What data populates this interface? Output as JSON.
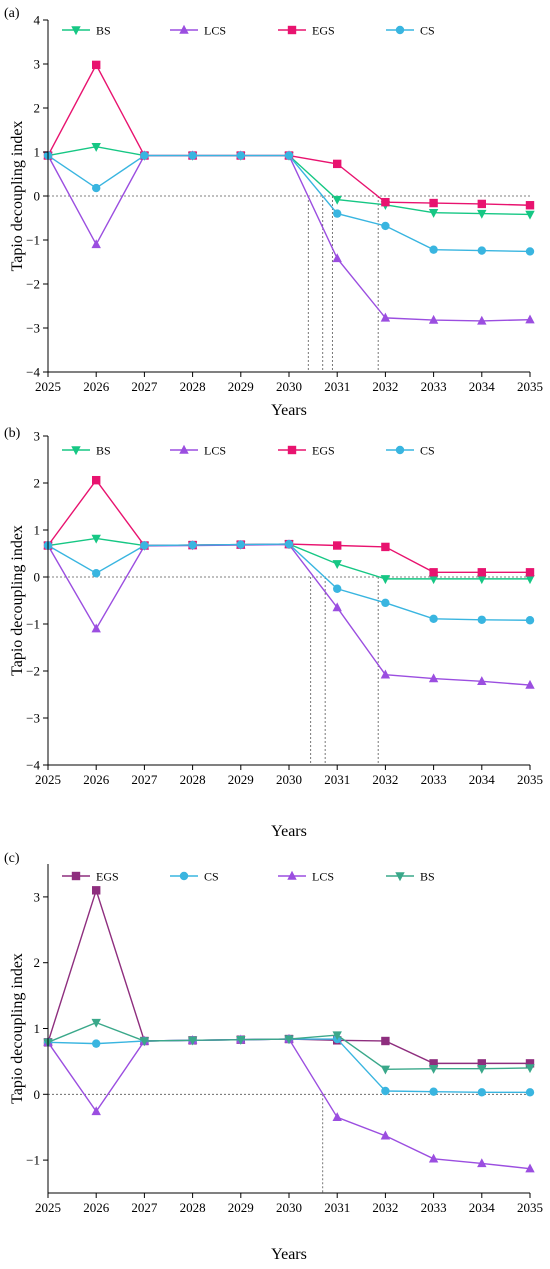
{
  "chart_data": [
    {
      "type": "line",
      "panel_label": "(a)",
      "xlabel": "Years",
      "ylabel": "Tapio decoupling index",
      "x": [
        2025,
        2026,
        2027,
        2028,
        2029,
        2030,
        2031,
        2032,
        2033,
        2034,
        2035
      ],
      "ylim": [
        -4,
        4
      ],
      "yticks": [
        -4,
        -3,
        -2,
        -1,
        0,
        1,
        2,
        3,
        4
      ],
      "grid": false,
      "legend_position": "top",
      "series": [
        {
          "name": "BS",
          "color": "#16c784",
          "marker": "triangle-down",
          "values": [
            0.92,
            1.12,
            0.92,
            0.92,
            0.92,
            0.92,
            -0.08,
            -0.2,
            -0.38,
            -0.4,
            -0.42
          ]
        },
        {
          "name": "LCS",
          "color": "#9b4ee0",
          "marker": "triangle-up",
          "values": [
            0.92,
            -1.1,
            0.92,
            0.92,
            0.92,
            0.92,
            -1.42,
            -2.77,
            -2.82,
            -2.84,
            -2.81
          ]
        },
        {
          "name": "EGS",
          "color": "#e8136f",
          "marker": "square",
          "values": [
            0.92,
            2.98,
            0.92,
            0.92,
            0.92,
            0.92,
            0.73,
            -0.14,
            -0.16,
            -0.18,
            -0.21
          ]
        },
        {
          "name": "CS",
          "color": "#39b5e0",
          "marker": "circle",
          "values": [
            0.92,
            0.18,
            0.92,
            0.92,
            0.92,
            0.92,
            -0.4,
            -0.68,
            -1.22,
            -1.24,
            -1.26
          ]
        }
      ],
      "drop_lines_x": [
        2030.4,
        2030.7,
        2030.9,
        2031.85
      ]
    },
    {
      "type": "line",
      "panel_label": "(b)",
      "xlabel": "Years",
      "ylabel": "Tapio decoupling index",
      "x": [
        2025,
        2026,
        2027,
        2028,
        2029,
        2030,
        2031,
        2032,
        2033,
        2034,
        2035
      ],
      "ylim": [
        -4,
        3
      ],
      "yticks": [
        -4,
        -3,
        -2,
        -1,
        0,
        1,
        2,
        3
      ],
      "grid": false,
      "legend_position": "top",
      "series": [
        {
          "name": "BS",
          "color": "#16c784",
          "marker": "triangle-down",
          "values": [
            0.67,
            0.82,
            0.67,
            0.68,
            0.69,
            0.7,
            0.28,
            -0.04,
            -0.04,
            -0.04,
            -0.04
          ]
        },
        {
          "name": "LCS",
          "color": "#9b4ee0",
          "marker": "triangle-up",
          "values": [
            0.67,
            -1.1,
            0.66,
            0.67,
            0.68,
            0.69,
            -0.65,
            -2.08,
            -2.16,
            -2.22,
            -2.3
          ]
        },
        {
          "name": "EGS",
          "color": "#e8136f",
          "marker": "square",
          "values": [
            0.67,
            2.06,
            0.67,
            0.68,
            0.69,
            0.7,
            0.67,
            0.64,
            0.1,
            0.1,
            0.1
          ]
        },
        {
          "name": "CS",
          "color": "#39b5e0",
          "marker": "circle",
          "values": [
            0.67,
            0.08,
            0.67,
            0.68,
            0.69,
            0.7,
            -0.25,
            -0.55,
            -0.89,
            -0.91,
            -0.92
          ]
        }
      ],
      "drop_lines_x": [
        2030.45,
        2030.75,
        2031.85
      ]
    },
    {
      "type": "line",
      "panel_label": "(c)",
      "xlabel": "Years",
      "ylabel": "Tapio decoupling index",
      "x": [
        2025,
        2026,
        2027,
        2028,
        2029,
        2030,
        2031,
        2032,
        2033,
        2034,
        2035
      ],
      "ylim": [
        -1.5,
        3.5
      ],
      "yticks": [
        -1,
        0,
        1,
        2,
        3
      ],
      "grid": false,
      "legend_position": "top",
      "series": [
        {
          "name": "EGS",
          "color": "#8e2e7e",
          "marker": "square",
          "values": [
            0.79,
            3.1,
            0.81,
            0.82,
            0.83,
            0.84,
            0.82,
            0.81,
            0.47,
            0.47,
            0.47
          ]
        },
        {
          "name": "CS",
          "color": "#39b5e0",
          "marker": "circle",
          "values": [
            0.79,
            0.77,
            0.81,
            0.82,
            0.83,
            0.84,
            0.84,
            0.05,
            0.04,
            0.03,
            0.03
          ]
        },
        {
          "name": "LCS",
          "color": "#9b4ee0",
          "marker": "triangle-up",
          "values": [
            0.79,
            -0.26,
            0.81,
            0.82,
            0.83,
            0.84,
            -0.35,
            -0.63,
            -0.98,
            -1.05,
            -1.13
          ]
        },
        {
          "name": "BS",
          "color": "#3aa88a",
          "marker": "triangle-down",
          "values": [
            0.79,
            1.09,
            0.81,
            0.82,
            0.83,
            0.84,
            0.9,
            0.38,
            0.39,
            0.39,
            0.4
          ]
        }
      ],
      "drop_lines_x": [
        2030.7
      ]
    }
  ]
}
